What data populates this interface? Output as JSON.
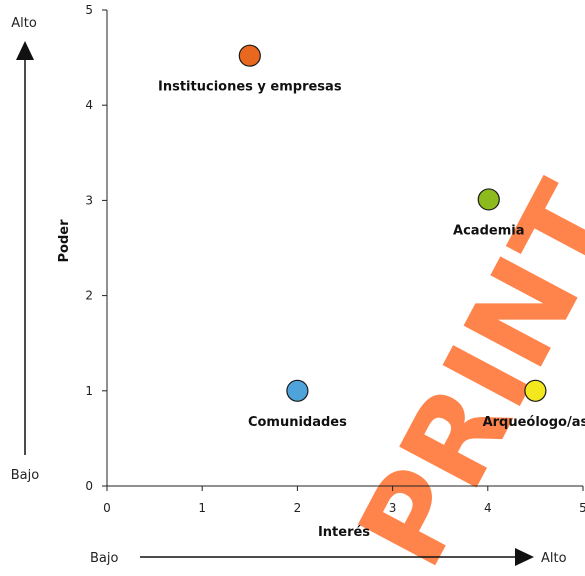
{
  "chart_data": {
    "type": "scatter",
    "xlabel": "Interés",
    "ylabel": "Poder",
    "xlim": [
      0,
      5
    ],
    "ylim": [
      0,
      5
    ],
    "x_ticks": [
      "0",
      "1",
      "2",
      "3",
      "4",
      "5"
    ],
    "y_ticks": [
      "0",
      "1",
      "2",
      "3",
      "4",
      "5"
    ],
    "grid": false,
    "points": [
      {
        "label": "Instituciones y empresas",
        "x": 1.5,
        "y": 4.52,
        "color": "#E8681F"
      },
      {
        "label": "Academia",
        "x": 4.01,
        "y": 3.01,
        "color": "#8DBB1E"
      },
      {
        "label": "Comunidades",
        "x": 2.0,
        "y": 1.0,
        "color": "#4EA3DB"
      },
      {
        "label": "Arqueólogo/as",
        "x": 4.5,
        "y": 1.0,
        "color": "#F3E81D"
      }
    ]
  },
  "axis_guides": {
    "vertical_high": "Alto",
    "vertical_low": "Bajo",
    "horizontal_low": "Bajo",
    "horizontal_high": "Alto"
  },
  "watermark": {
    "text": "PRINT",
    "color": "#ff7a3d"
  }
}
